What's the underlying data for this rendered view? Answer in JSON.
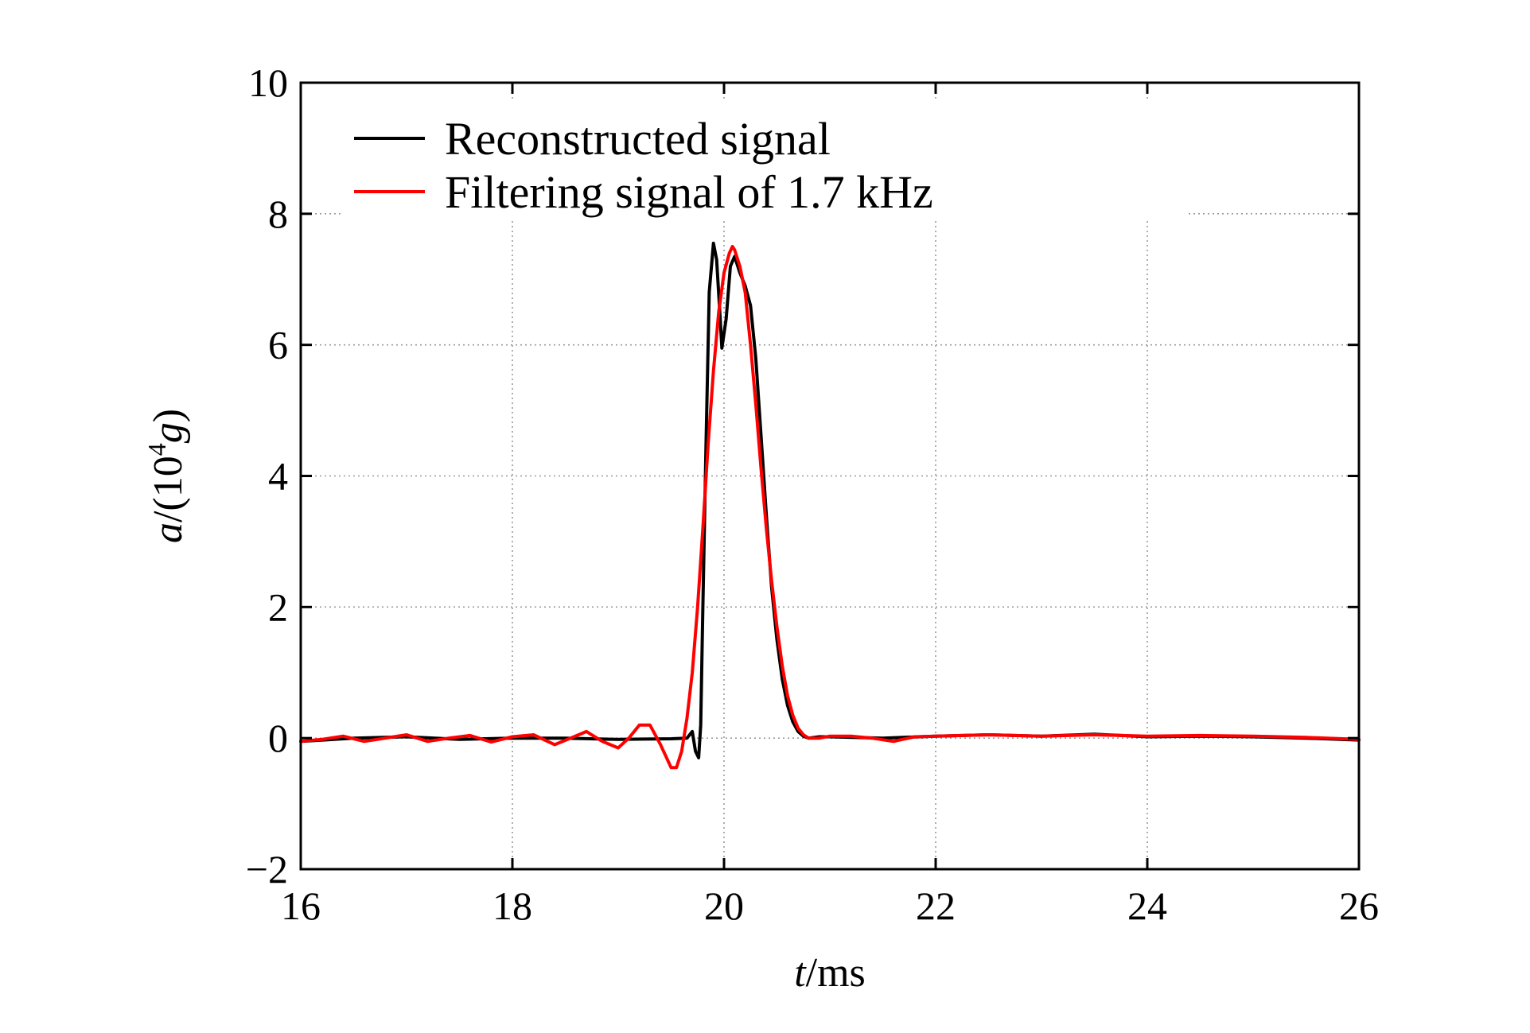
{
  "chart_data": {
    "type": "line",
    "title": "",
    "xlabel_var": "t",
    "xlabel_unit": "/ms",
    "ylabel_var": "a",
    "ylabel_mid": "/(10",
    "ylabel_sup": "4",
    "ylabel_var2": "g",
    "ylabel_end": ")",
    "xlim": [
      16,
      26
    ],
    "ylim": [
      -2,
      10
    ],
    "xticks": [
      16,
      18,
      20,
      22,
      24,
      26
    ],
    "xtick_labels": [
      "16",
      "18",
      "20",
      "22",
      "24",
      "26"
    ],
    "yticks": [
      -2,
      0,
      2,
      4,
      6,
      8,
      10
    ],
    "ytick_labels": [
      "−2",
      "0",
      "2",
      "4",
      "6",
      "8",
      "10"
    ],
    "grid": true,
    "legend_position": "top-left",
    "series": [
      {
        "name": "Reconstructed signal",
        "color": "#000000",
        "x": [
          16.0,
          16.5,
          17.0,
          17.5,
          18.0,
          18.5,
          19.0,
          19.5,
          19.65,
          19.7,
          19.73,
          19.76,
          19.78,
          19.8,
          19.83,
          19.86,
          19.9,
          19.93,
          19.96,
          19.98,
          20.02,
          20.06,
          20.1,
          20.15,
          20.2,
          20.25,
          20.3,
          20.35,
          20.4,
          20.45,
          20.5,
          20.55,
          20.6,
          20.65,
          20.7,
          20.75,
          20.8,
          20.9,
          21.0,
          21.5,
          22.0,
          22.5,
          23.0,
          23.5,
          24.0,
          24.5,
          25.0,
          25.5,
          26.0
        ],
        "y": [
          -0.05,
          0.0,
          0.02,
          -0.02,
          0.0,
          0.0,
          -0.02,
          -0.01,
          0.0,
          0.1,
          -0.2,
          -0.3,
          0.2,
          2.0,
          4.5,
          6.8,
          7.55,
          7.3,
          6.5,
          5.95,
          6.4,
          7.2,
          7.35,
          7.1,
          6.9,
          6.6,
          5.8,
          4.6,
          3.4,
          2.3,
          1.5,
          0.9,
          0.5,
          0.25,
          0.1,
          0.03,
          0.0,
          0.02,
          0.02,
          0.0,
          0.03,
          0.05,
          0.03,
          0.06,
          0.02,
          0.03,
          0.02,
          0.0,
          -0.03
        ]
      },
      {
        "name": "Filtering signal of 1.7 kHz",
        "color": "#ff0000",
        "x": [
          16.0,
          16.2,
          16.4,
          16.6,
          16.8,
          17.0,
          17.2,
          17.4,
          17.6,
          17.8,
          18.0,
          18.2,
          18.4,
          18.55,
          18.7,
          18.85,
          19.0,
          19.1,
          19.2,
          19.3,
          19.4,
          19.5,
          19.55,
          19.6,
          19.65,
          19.7,
          19.75,
          19.8,
          19.85,
          19.9,
          19.95,
          20.0,
          20.05,
          20.08,
          20.1,
          20.15,
          20.2,
          20.25,
          20.3,
          20.35,
          20.4,
          20.45,
          20.5,
          20.55,
          20.6,
          20.65,
          20.7,
          20.75,
          20.8,
          20.9,
          21.0,
          21.2,
          21.4,
          21.6,
          21.8,
          22.0,
          22.5,
          23.0,
          23.5,
          24.0,
          24.5,
          25.0,
          25.5,
          26.0
        ],
        "y": [
          -0.05,
          -0.02,
          0.03,
          -0.05,
          0.0,
          0.05,
          -0.05,
          0.0,
          0.04,
          -0.06,
          0.02,
          0.05,
          -0.1,
          0.0,
          0.1,
          -0.05,
          -0.15,
          0.0,
          0.2,
          0.2,
          -0.1,
          -0.45,
          -0.45,
          -0.2,
          0.3,
          1.0,
          2.0,
          3.2,
          4.5,
          5.6,
          6.5,
          7.1,
          7.4,
          7.5,
          7.45,
          7.2,
          6.8,
          6.0,
          5.1,
          4.1,
          3.2,
          2.4,
          1.7,
          1.1,
          0.65,
          0.35,
          0.15,
          0.05,
          0.0,
          0.0,
          0.03,
          0.03,
          0.0,
          -0.05,
          0.02,
          0.03,
          0.05,
          0.03,
          0.05,
          0.03,
          0.04,
          0.03,
          0.01,
          -0.02
        ]
      }
    ]
  }
}
